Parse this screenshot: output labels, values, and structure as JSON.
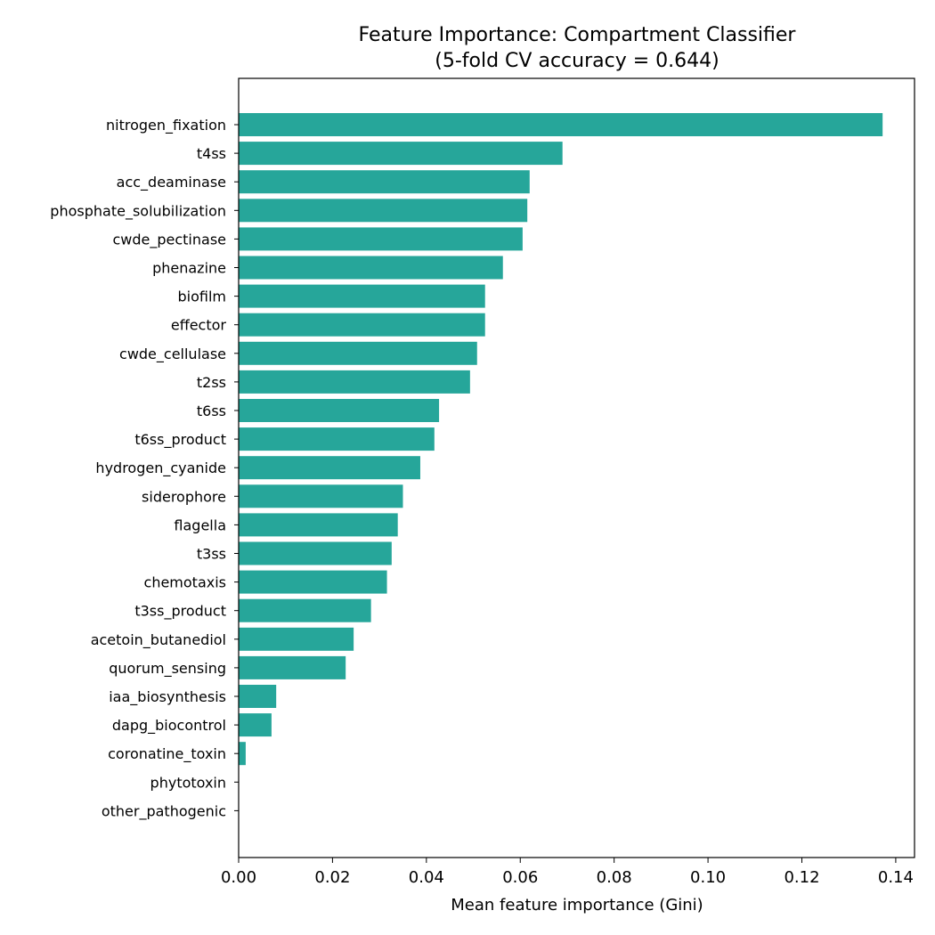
{
  "chart_data": {
    "type": "bar",
    "orientation": "horizontal",
    "title": "Feature Importance: Compartment Classifier",
    "subtitle": "(5-fold CV accuracy = 0.644)",
    "xlabel": "Mean feature importance (Gini)",
    "ylabel": "",
    "xlim": [
      0,
      0.144
    ],
    "xticks": [
      0.0,
      0.02,
      0.04,
      0.06,
      0.08,
      0.1,
      0.12,
      0.14
    ],
    "xtick_labels": [
      "0.00",
      "0.02",
      "0.04",
      "0.06",
      "0.08",
      "0.10",
      "0.12",
      "0.14"
    ],
    "grid": false,
    "bar_color": "#26a69a",
    "categories": [
      "nitrogen_fixation",
      "t4ss",
      "acc_deaminase",
      "phosphate_solubilization",
      "cwde_pectinase",
      "phenazine",
      "biofilm",
      "effector",
      "cwde_cellulase",
      "t2ss",
      "t6ss",
      "t6ss_product",
      "hydrogen_cyanide",
      "siderophore",
      "flagella",
      "t3ss",
      "chemotaxis",
      "t3ss_product",
      "acetoin_butanediol",
      "quorum_sensing",
      "iaa_biosynthesis",
      "dapg_biocontrol",
      "coronatine_toxin",
      "phytotoxin",
      "other_pathogenic"
    ],
    "values": [
      0.1372,
      0.069,
      0.062,
      0.0615,
      0.0605,
      0.0563,
      0.0525,
      0.0525,
      0.0508,
      0.0493,
      0.0427,
      0.0417,
      0.0387,
      0.035,
      0.0339,
      0.0326,
      0.0316,
      0.0282,
      0.0245,
      0.0228,
      0.008,
      0.007,
      0.0015,
      0.0,
      0.0
    ]
  }
}
